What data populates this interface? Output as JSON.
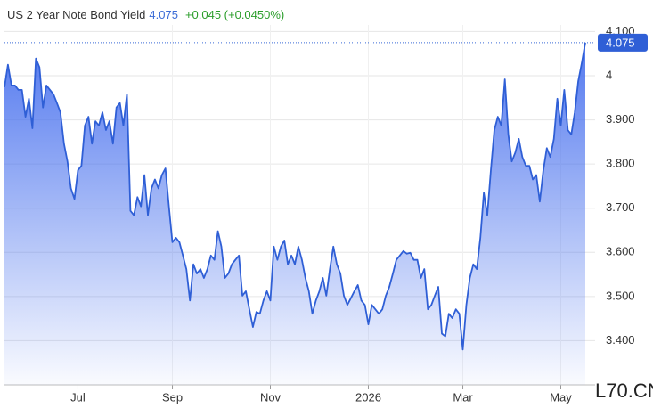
{
  "chart_data": {
    "type": "area",
    "title": "US 2 Year Note Bond Yield",
    "price": "4.075",
    "change": "+0.045 (+0.0450%)",
    "watermark": "L70.CN",
    "color": "#2f5fd6",
    "grid": true,
    "xlim": [
      0,
      166
    ],
    "xticks": [
      {
        "value": 21,
        "label": "Jul"
      },
      {
        "value": 48,
        "label": "Sep"
      },
      {
        "value": 76,
        "label": "Nov"
      },
      {
        "value": 104,
        "label": "2026"
      },
      {
        "value": 131,
        "label": "Mar"
      },
      {
        "value": 159,
        "label": "May"
      }
    ],
    "ylim": [
      3.3,
      4.115
    ],
    "yticks": [
      {
        "value": 4.1,
        "label": "4.100"
      },
      4,
      {
        "value": 3.9,
        "label": "3.900"
      },
      {
        "value": 3.8,
        "label": "3.800"
      },
      {
        "value": 3.7,
        "label": "3.700"
      },
      {
        "value": 3.6,
        "label": "3.600"
      },
      {
        "value": 3.5,
        "label": "3.500"
      },
      {
        "value": 3.4,
        "label": "3.400"
      }
    ],
    "values": [
      3.974,
      4.025,
      3.978,
      3.978,
      3.968,
      3.968,
      3.907,
      3.948,
      3.881,
      4.039,
      4.019,
      3.928,
      3.978,
      3.968,
      3.958,
      3.938,
      3.917,
      3.846,
      3.806,
      3.745,
      3.721,
      3.786,
      3.796,
      3.887,
      3.907,
      3.846,
      3.897,
      3.887,
      3.917,
      3.877,
      3.897,
      3.846,
      3.928,
      3.938,
      3.887,
      3.958,
      3.694,
      3.684,
      3.725,
      3.704,
      3.775,
      3.684,
      3.745,
      3.765,
      3.745,
      3.775,
      3.79,
      3.704,
      3.623,
      3.633,
      3.623,
      3.593,
      3.562,
      3.491,
      3.573,
      3.552,
      3.562,
      3.542,
      3.562,
      3.593,
      3.583,
      3.648,
      3.613,
      3.542,
      3.552,
      3.573,
      3.583,
      3.593,
      3.502,
      3.512,
      3.471,
      3.431,
      3.465,
      3.461,
      3.491,
      3.512,
      3.491,
      3.613,
      3.583,
      3.613,
      3.627,
      3.573,
      3.593,
      3.573,
      3.613,
      3.583,
      3.542,
      3.512,
      3.461,
      3.491,
      3.512,
      3.542,
      3.502,
      3.562,
      3.613,
      3.573,
      3.552,
      3.502,
      3.481,
      3.496,
      3.512,
      3.526,
      3.491,
      3.481,
      3.437,
      3.481,
      3.471,
      3.461,
      3.471,
      3.502,
      3.522,
      3.552,
      3.583,
      3.593,
      3.603,
      3.597,
      3.599,
      3.583,
      3.583,
      3.542,
      3.562,
      3.471,
      3.481,
      3.502,
      3.522,
      3.416,
      3.41,
      3.461,
      3.451,
      3.471,
      3.461,
      3.38,
      3.481,
      3.542,
      3.573,
      3.562,
      3.633,
      3.735,
      3.684,
      3.786,
      3.877,
      3.907,
      3.887,
      3.992,
      3.867,
      3.806,
      3.826,
      3.857,
      3.816,
      3.796,
      3.796,
      3.765,
      3.775,
      3.715,
      3.786,
      3.836,
      3.816,
      3.857,
      3.948,
      3.887,
      3.968,
      3.877,
      3.867,
      3.917,
      3.988,
      4.029,
      4.075
    ]
  }
}
